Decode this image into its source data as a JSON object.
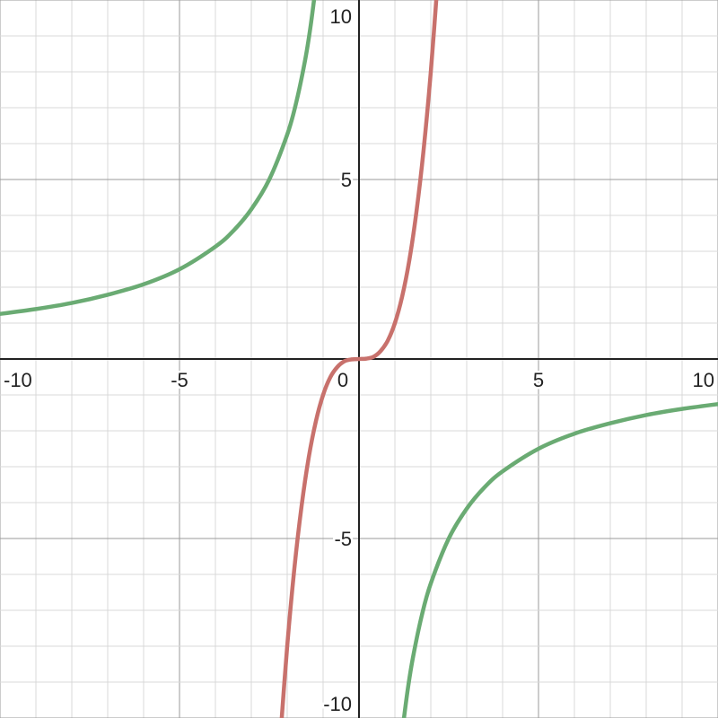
{
  "chart_data": {
    "type": "line",
    "xlim": [
      -10,
      10
    ],
    "ylim": [
      -10,
      10
    ],
    "grid": true,
    "minor_grid_step": 1,
    "major_grid_step": 5,
    "x_tick_labels": [
      "-10",
      "-5",
      "0",
      "5",
      "10"
    ],
    "x_tick_values": [
      -10,
      -5,
      0,
      5,
      10
    ],
    "y_tick_labels": [
      "10",
      "5",
      "-5",
      "-10"
    ],
    "y_tick_values": [
      10,
      5,
      -5,
      -10
    ],
    "series": [
      {
        "color": "#c8716c",
        "segments": [
          {
            "x": [
              -2.2,
              -2,
              -1.8,
              -1.6,
              -1.4,
              -1.2,
              -1,
              -0.8,
              -0.6,
              -0.4,
              -0.2,
              0,
              0.2,
              0.4,
              0.6,
              0.8,
              1,
              1.2,
              1.4,
              1.6,
              1.8,
              2,
              2.2
            ],
            "y": [
              -10.65,
              -8,
              -5.83,
              -4.1,
              -2.74,
              -1.73,
              -1,
              -0.51,
              -0.22,
              -0.06,
              -0.01,
              0,
              0.01,
              0.06,
              0.22,
              0.51,
              1,
              1.73,
              2.74,
              4.1,
              5.83,
              8,
              10.65
            ]
          }
        ]
      },
      {
        "color": "#6aab73",
        "segments": [
          {
            "x": [
              -10.2,
              -9,
              -8,
              -7,
              -6,
              -5,
              -4,
              -3.5,
              -3,
              -2.5,
              -2,
              -1.75,
              -1.5,
              -1.35,
              -1.2
            ],
            "y": [
              1.23,
              1.39,
              1.56,
              1.79,
              2.08,
              2.5,
              3.13,
              3.57,
              4.17,
              5,
              6.25,
              7.14,
              8.33,
              9.26,
              10.42
            ]
          },
          {
            "x": [
              1.2,
              1.35,
              1.5,
              1.75,
              2,
              2.5,
              3,
              3.5,
              4,
              5,
              6,
              7,
              8,
              9,
              10.2
            ],
            "y": [
              -10.42,
              -9.26,
              -8.33,
              -7.14,
              -6.25,
              -5,
              -4.17,
              -3.57,
              -3.13,
              -2.5,
              -2.08,
              -1.79,
              -1.56,
              -1.39,
              -1.23
            ]
          }
        ]
      }
    ]
  }
}
